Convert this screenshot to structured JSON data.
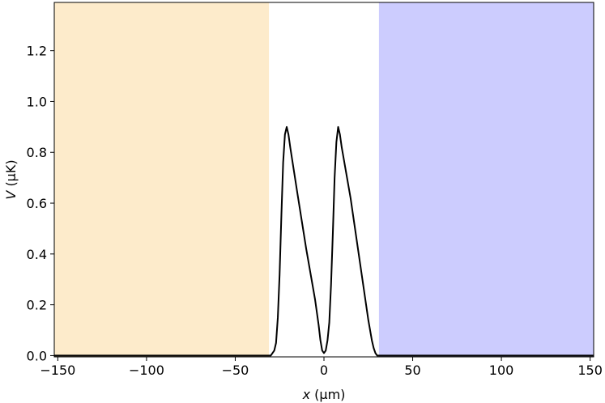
{
  "chart_data": {
    "type": "line",
    "xlabel": "x (μm)",
    "xlabel_parts": {
      "var": "x",
      "unit": " (μm)"
    },
    "ylabel": "V (μK)",
    "ylabel_parts": {
      "var": "V",
      "unit": " (μK)"
    },
    "xlim": [
      -152,
      152
    ],
    "ylim": [
      -0.005,
      1.39
    ],
    "x_ticks": [
      -150,
      -100,
      -50,
      0,
      50,
      100,
      150
    ],
    "x_tick_labels": [
      "−150",
      "−100",
      "−50",
      "0",
      "50",
      "100",
      "150"
    ],
    "y_ticks": [
      0.0,
      0.2,
      0.4,
      0.6,
      0.8,
      1.0,
      1.2
    ],
    "y_tick_labels": [
      "0.0",
      "0.2",
      "0.4",
      "0.6",
      "0.8",
      "1.0",
      "1.2"
    ],
    "grid": false,
    "shaded_regions": [
      {
        "x_range": [
          -152,
          -31
        ],
        "color": "#fdebcb"
      },
      {
        "x_range": [
          31,
          152
        ],
        "color": "#ccccfe"
      }
    ],
    "series": [
      {
        "color": "#000000",
        "points": [
          [
            -152,
            0.0
          ],
          [
            -30,
            0.0
          ],
          [
            -28,
            0.02
          ],
          [
            -27,
            0.05
          ],
          [
            -26,
            0.15
          ],
          [
            -25,
            0.32
          ],
          [
            -24,
            0.55
          ],
          [
            -23,
            0.76
          ],
          [
            -22,
            0.87
          ],
          [
            -21,
            0.9
          ],
          [
            -20,
            0.87
          ],
          [
            -19,
            0.82
          ],
          [
            -15,
            0.64
          ],
          [
            -10,
            0.42
          ],
          [
            -5,
            0.22
          ],
          [
            -3,
            0.12
          ],
          [
            -2,
            0.06
          ],
          [
            -1,
            0.02
          ],
          [
            0,
            0.01
          ],
          [
            1,
            0.02
          ],
          [
            2,
            0.06
          ],
          [
            3,
            0.13
          ],
          [
            4,
            0.28
          ],
          [
            5,
            0.48
          ],
          [
            6,
            0.7
          ],
          [
            7,
            0.84
          ],
          [
            8,
            0.9
          ],
          [
            9,
            0.87
          ],
          [
            10,
            0.82
          ],
          [
            15,
            0.62
          ],
          [
            20,
            0.38
          ],
          [
            25,
            0.14
          ],
          [
            27,
            0.06
          ],
          [
            28,
            0.03
          ],
          [
            29,
            0.01
          ],
          [
            30,
            0.0
          ],
          [
            152,
            0.0
          ]
        ]
      }
    ]
  }
}
